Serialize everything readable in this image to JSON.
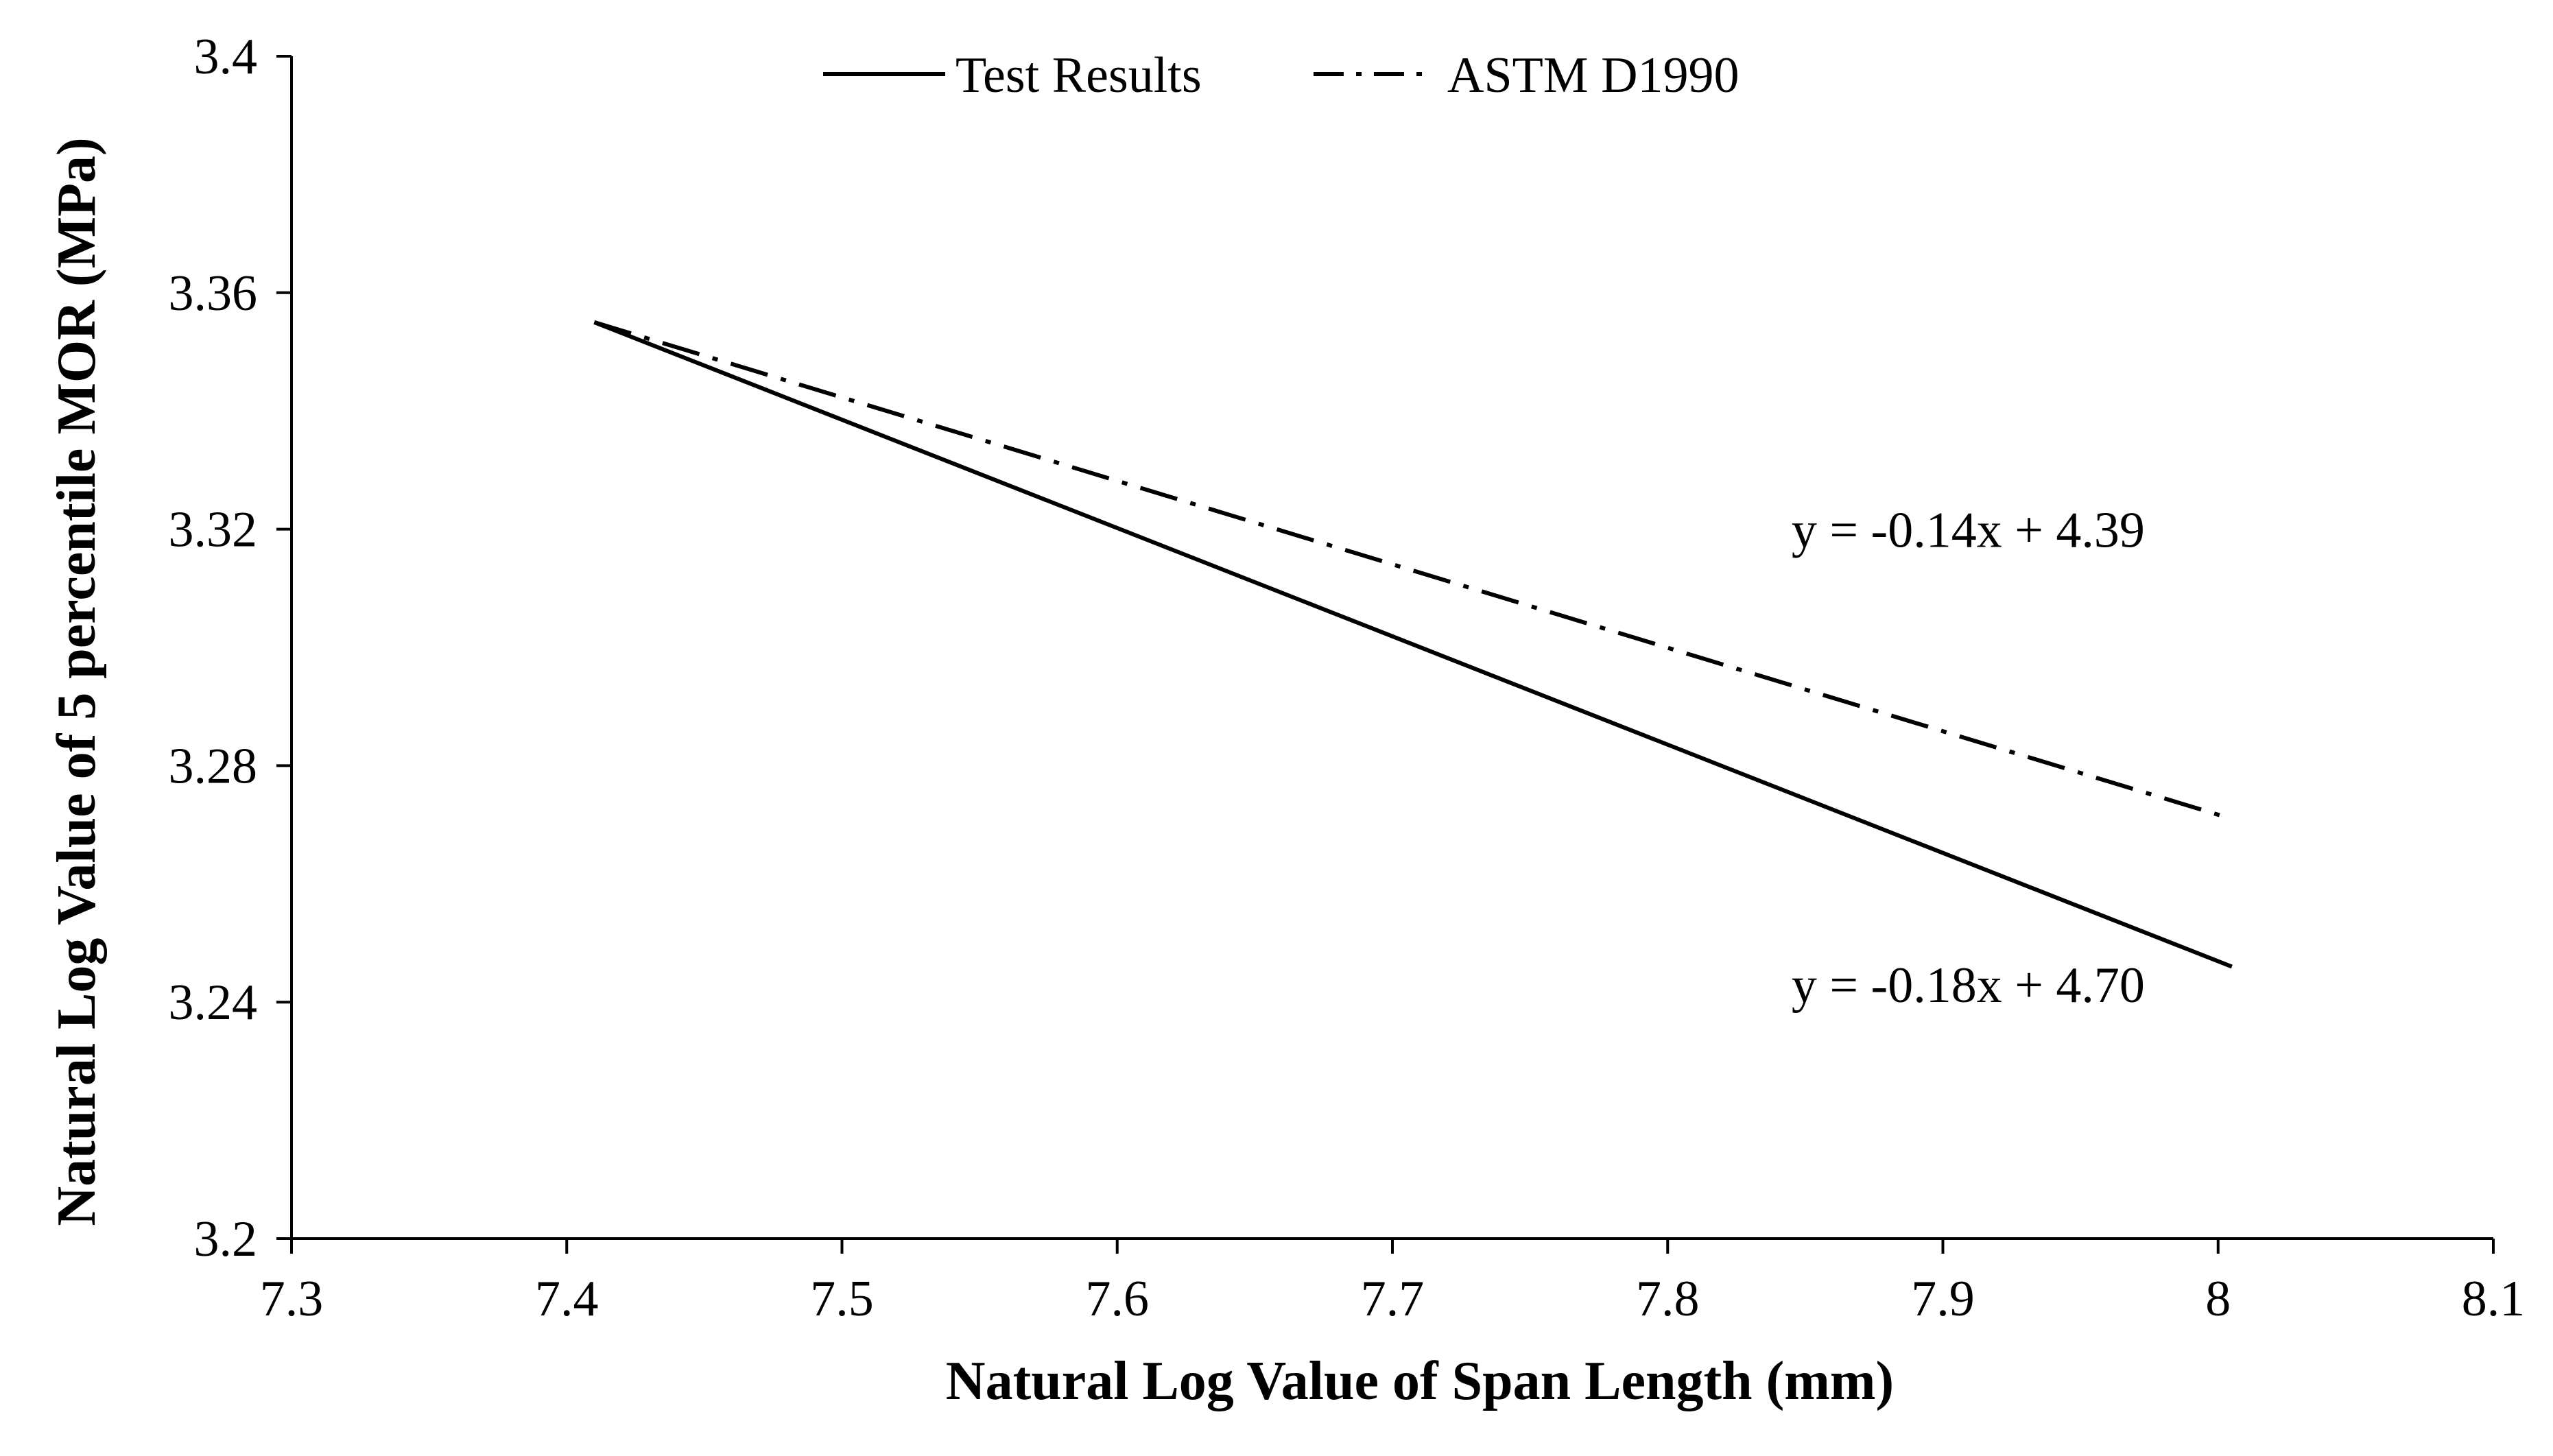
{
  "chart_data": {
    "type": "line",
    "title": "",
    "xlabel": "Natural Log Value of Span Length (mm)",
    "ylabel": "Natural Log Value of 5 percentile MOR (MPa)",
    "xlim": [
      7.3,
      8.1
    ],
    "ylim": [
      3.2,
      3.4
    ],
    "x_ticks": [
      7.3,
      7.4,
      7.5,
      7.6,
      7.7,
      7.8,
      7.9,
      8.0,
      8.1
    ],
    "x_tick_labels": [
      "7.3",
      "7.4",
      "7.5",
      "7.6",
      "7.7",
      "7.8",
      "7.9",
      "8",
      "8.1"
    ],
    "y_ticks": [
      3.2,
      3.24,
      3.28,
      3.32,
      3.36,
      3.4
    ],
    "y_tick_labels": [
      "3.2",
      "3.24",
      "3.28",
      "3.32",
      "3.36",
      "3.4"
    ],
    "grid": false,
    "legend": {
      "position": "top-center"
    },
    "series": [
      {
        "name": "Test Results",
        "style": "solid",
        "color": "#000000",
        "x": [
          7.41,
          8.005
        ],
        "y": [
          3.355,
          3.246
        ]
      },
      {
        "name": "ASTM D1990",
        "style": "dash-dot",
        "color": "#000000",
        "x": [
          7.41,
          8.005
        ],
        "y": [
          3.355,
          3.271
        ]
      }
    ],
    "annotations": [
      {
        "text": "y = -0.14x + 4.39",
        "x": 7.845,
        "y": 3.317
      },
      {
        "text": "y = -0.18x + 4.70",
        "x": 7.845,
        "y": 3.24
      }
    ]
  }
}
